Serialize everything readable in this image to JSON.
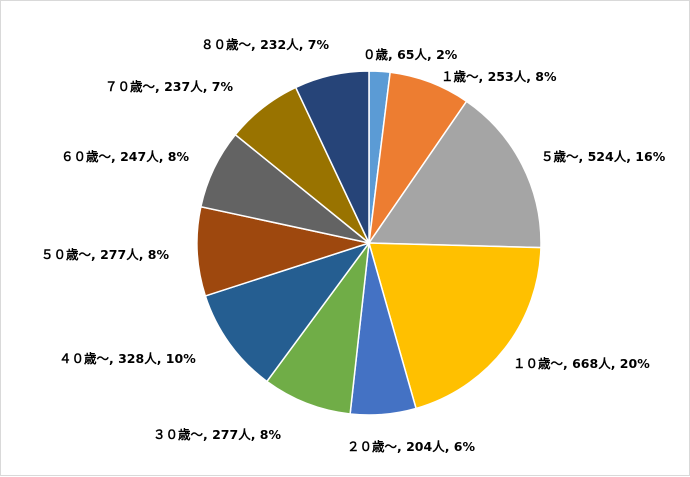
{
  "chart_data": {
    "type": "pie",
    "title": "",
    "legend": "none",
    "start": "top, clockwise",
    "slices": [
      {
        "label": "０歳",
        "count": "65人",
        "percent": "2%",
        "text": "０歳, 65人, 2%",
        "value": 65,
        "color": "#5B9BD5"
      },
      {
        "label": "１歳～",
        "count": "253人",
        "percent": "8%",
        "text": "１歳～, 253人, 8%",
        "value": 253,
        "color": "#ED7D31"
      },
      {
        "label": "５歳～",
        "count": "524人",
        "percent": "16%",
        "text": "５歳～, 524人, 16%",
        "value": 524,
        "color": "#A5A5A5"
      },
      {
        "label": "１０歳～",
        "count": "668人",
        "percent": "20%",
        "text": "１０歳～, 668人, 20%",
        "value": 668,
        "color": "#FFC000"
      },
      {
        "label": "２０歳～",
        "count": "204人",
        "percent": "6%",
        "text": "２０歳～, 204人, 6%",
        "value": 204,
        "color": "#4472C4"
      },
      {
        "label": "３０歳～",
        "count": "277人",
        "percent": "8%",
        "text": "３０歳～, 277人, 8%",
        "value": 277,
        "color": "#70AD47"
      },
      {
        "label": "４０歳～",
        "count": "328人",
        "percent": "10%",
        "text": "４０歳～, 328人, 10%",
        "value": 328,
        "color": "#255E91"
      },
      {
        "label": "５０歳～",
        "count": "277人",
        "percent": "8%",
        "text": "５０歳～, 277人, 8%",
        "value": 277,
        "color": "#9E480E"
      },
      {
        "label": "６０歳～",
        "count": "247人",
        "percent": "8%",
        "text": "６０歳～, 247人, 8%",
        "value": 247,
        "color": "#636363"
      },
      {
        "label": "７０歳～",
        "count": "237人",
        "percent": "7%",
        "text": "７０歳～, 237人, 7%",
        "value": 237,
        "color": "#997300"
      },
      {
        "label": "８０歳～",
        "count": "232人",
        "percent": "7%",
        "text": "８０歳～, 232人, 7%",
        "value": 232,
        "color": "#264478"
      }
    ]
  }
}
